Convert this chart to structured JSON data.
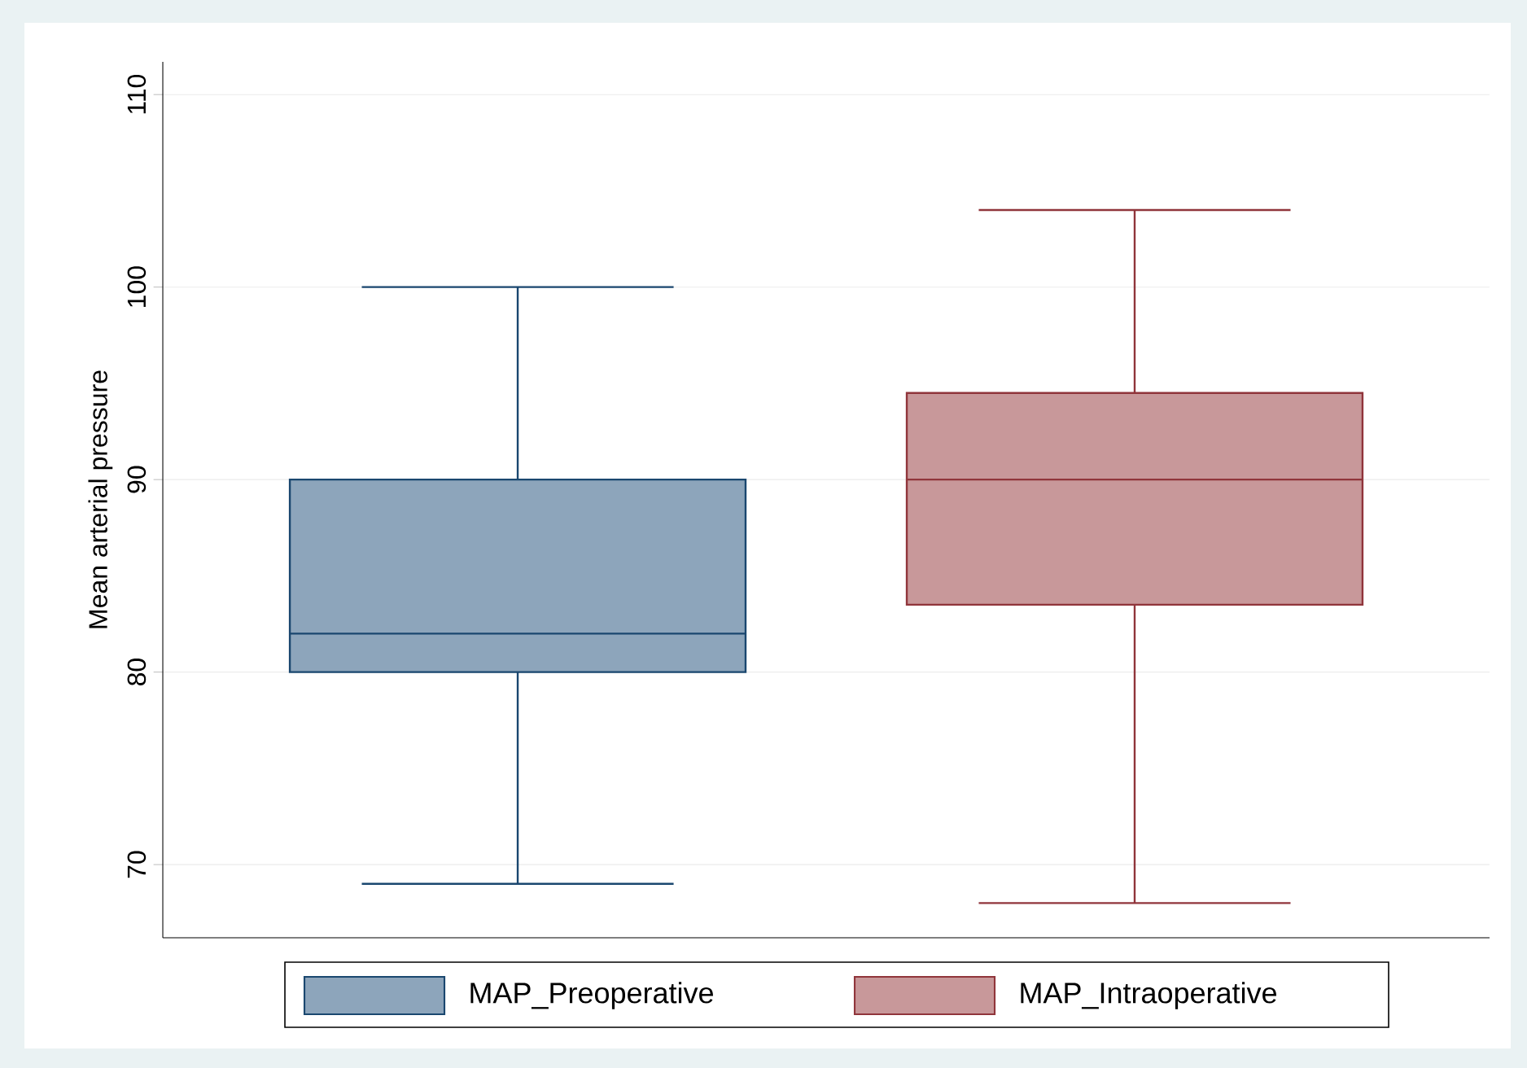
{
  "chart_data": {
    "type": "box",
    "ylabel": "Mean arterial pressure",
    "categories": [
      null
    ],
    "series": [
      {
        "name": "MAP_Preoperative",
        "color": "#8da5bb",
        "boxes": [
          {
            "low": 69,
            "q1": 80,
            "median": 82,
            "q3": 90,
            "high": 100
          }
        ]
      },
      {
        "name": "MAP_Intraoperative",
        "color": "#c8989a",
        "boxes": [
          {
            "low": 68,
            "q1": 83.5,
            "median": 90,
            "q3": 94.5,
            "high": 104
          }
        ]
      }
    ],
    "ylim": [
      66.2,
      111.7
    ],
    "yticks": [
      70,
      80,
      90,
      100,
      110
    ],
    "grid": "y",
    "legend": "bottom"
  }
}
